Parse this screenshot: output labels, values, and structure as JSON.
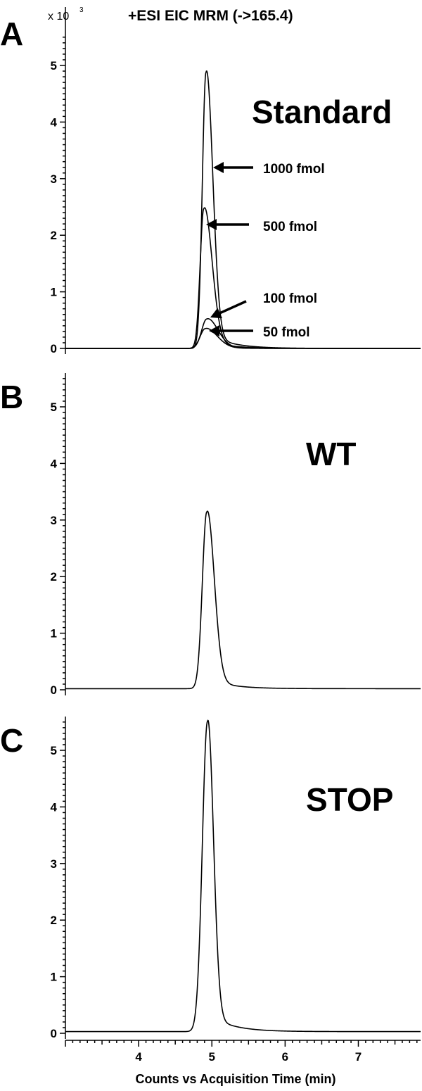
{
  "figure": {
    "top_title": "+ESI EIC MRM (->165.4)",
    "unit_prefix": "x 10",
    "unit_exponent": "3",
    "xlabel": "Counts vs Acquisition Time (min)"
  },
  "chart_data": [
    {
      "panel": "A",
      "type": "line",
      "title": "+ESI EIC MRM (->165.4)",
      "label": "Standard",
      "xlabel": "Counts vs Acquisition Time (min)",
      "ylabel": "x 10^3",
      "xlim": [
        3.0,
        7.85
      ],
      "ylim": [
        0,
        5.5
      ],
      "xticks": [
        4,
        5,
        6,
        7
      ],
      "yticks": [
        0,
        1,
        2,
        3,
        4,
        5
      ],
      "series": [
        {
          "name": "1000 fmol",
          "apex_x": 4.92,
          "peak_height": 4.88,
          "sigma_left": 0.05,
          "sigma_right": 0.09,
          "baseline": 0.0
        },
        {
          "name": "500 fmol",
          "apex_x": 4.89,
          "peak_height": 2.47,
          "sigma_left": 0.05,
          "sigma_right": 0.11,
          "baseline": 0.0
        },
        {
          "name": "100 fmol",
          "apex_x": 4.93,
          "peak_height": 0.52,
          "sigma_left": 0.07,
          "sigma_right": 0.15,
          "baseline": 0.0
        },
        {
          "name": "50 fmol",
          "apex_x": 4.91,
          "peak_height": 0.35,
          "sigma_left": 0.07,
          "sigma_right": 0.16,
          "baseline": 0.0
        }
      ],
      "annotations": [
        "1000 fmol",
        "500 fmol",
        "100 fmol",
        "50 fmol"
      ]
    },
    {
      "panel": "B",
      "type": "line",
      "label": "WT",
      "xlabel": "Counts vs Acquisition Time (min)",
      "ylabel": "x 10^3",
      "xlim": [
        3.0,
        7.85
      ],
      "ylim": [
        0,
        5.5
      ],
      "xticks": [
        4,
        5,
        6,
        7
      ],
      "yticks": [
        0,
        1,
        2,
        3,
        4,
        5
      ],
      "series": [
        {
          "apex_x": 4.93,
          "peak_height": 3.12,
          "sigma_left": 0.06,
          "sigma_right": 0.1,
          "baseline": 0.02
        }
      ]
    },
    {
      "panel": "C",
      "type": "line",
      "label": "STOP",
      "xlabel": "Counts vs Acquisition Time (min)",
      "ylabel": "x 10^3",
      "xlim": [
        3.0,
        7.85
      ],
      "ylim": [
        0,
        5.5
      ],
      "xticks": [
        4,
        5,
        6,
        7
      ],
      "yticks": [
        0,
        1,
        2,
        3,
        4,
        5
      ],
      "series": [
        {
          "apex_x": 4.94,
          "peak_height": 5.48,
          "sigma_left": 0.07,
          "sigma_right": 0.08,
          "baseline": 0.03
        }
      ]
    }
  ]
}
